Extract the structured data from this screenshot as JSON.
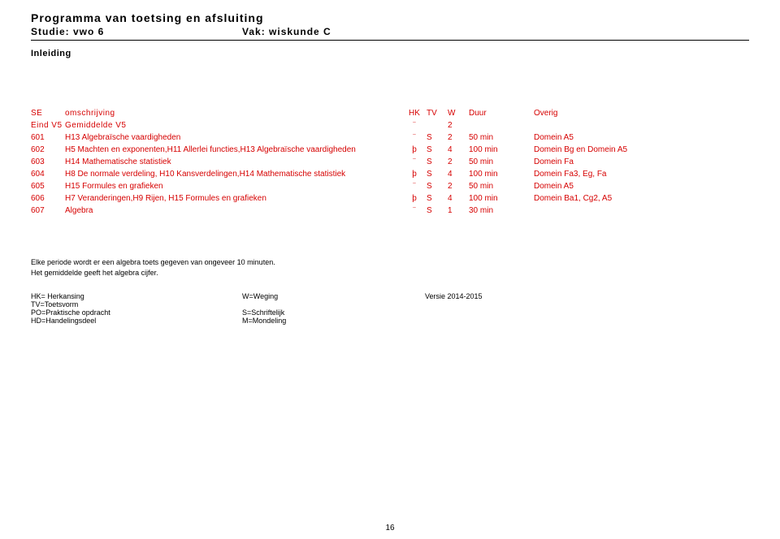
{
  "header": {
    "title": "Programma van toetsing en afsluiting",
    "study_label": "Studie: vwo 6",
    "subject_label": "Vak: wiskunde C",
    "inleiding": "Inleiding"
  },
  "table_head": {
    "code": "SE",
    "desc": "omschrijving",
    "hk": "HK",
    "tv": "TV",
    "w": "W",
    "duur": "Duur",
    "overig": "Overig",
    "eind_code": "Eind V5",
    "eind_desc": "Gemiddelde V5",
    "eind_hk": "¨",
    "eind_w": "2"
  },
  "rows": [
    {
      "code": "601",
      "desc": "H13 Algebraïsche vaardigheden",
      "hk": "¨",
      "tv": "S",
      "w": "2",
      "duur": "50 min",
      "over": "Domein A5"
    },
    {
      "code": "602",
      "desc": "H5 Machten en exponenten,H11 Allerlei functies,H13 Algebraïsche vaardigheden",
      "hk": "þ",
      "tv": "S",
      "w": "4",
      "duur": "100 min",
      "over": "Domein Bg en Domein A5"
    },
    {
      "code": "603",
      "desc": "H14 Mathematische statistiek",
      "hk": "¨",
      "tv": "S",
      "w": "2",
      "duur": "50 min",
      "over": "Domein Fa"
    },
    {
      "code": "604",
      "desc": "H8 De normale verdeling, H10 Kansverdelingen,H14 Mathematische statistiek",
      "hk": "þ",
      "tv": "S",
      "w": "4",
      "duur": "100 min",
      "over": "Domein Fa3, Eg, Fa"
    },
    {
      "code": "605",
      "desc": "H15 Formules en grafieken",
      "hk": "¨",
      "tv": "S",
      "w": "2",
      "duur": "50 min",
      "over": "Domein A5"
    },
    {
      "code": "606",
      "desc": "H7 Veranderingen,H9 Rijen, H15 Formules en grafieken",
      "hk": "þ",
      "tv": "S",
      "w": "4",
      "duur": "100 min",
      "over": "Domein Ba1, Cg2, A5"
    },
    {
      "code": "607",
      "desc": "Algebra",
      "hk": "¨",
      "tv": "S",
      "w": "1",
      "duur": "30 min",
      "over": ""
    }
  ],
  "note_line1": "Elke periode wordt er een algebra toets gegeven van ongeveer 10 minuten.",
  "note_line2": "Het gemiddelde geeft het algebra cijfer.",
  "legend": {
    "hk": "HK= Herkansing",
    "tv": "TV=Toetsvorm",
    "po": "PO=Praktische opdracht",
    "hd": "HD=Handelingsdeel",
    "w": "W=Weging",
    "s": "S=Schriftelijk",
    "m": "M=Mondeling",
    "versie": "Versie 2014-2015"
  },
  "page_number": "16",
  "colors": {
    "red": "#d60000",
    "text": "#000000",
    "background": "#ffffff"
  }
}
